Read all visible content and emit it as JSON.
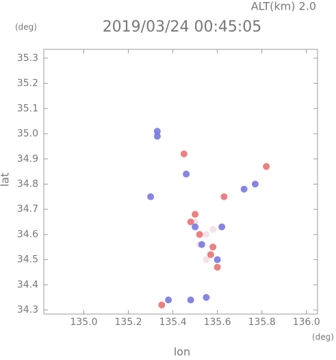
{
  "chart_data": {
    "type": "scatter",
    "subtitle": "ALT(km) 2.0",
    "title": "2019/03/24 00:45:05",
    "ylabel": "lat",
    "yunit": "(deg)",
    "xlabel": "lon",
    "xunit": "(deg)",
    "xlim": [
      134.82,
      136.05
    ],
    "ylim": [
      34.284,
      35.335
    ],
    "xticks": [
      {
        "value": 135.0,
        "label": "135.0"
      },
      135.2,
      135.4,
      135.6,
      135.8,
      {
        "value": 136.0,
        "label": "136.0"
      }
    ],
    "yticks": [
      34.3,
      34.4,
      34.5,
      34.6,
      34.7,
      34.8,
      34.9,
      {
        "value": 35.0,
        "label": "35.0"
      },
      35.1,
      35.2,
      35.3
    ],
    "series": [
      {
        "color": "#f3dde3",
        "x": [
          135.5,
          135.55,
          135.55,
          135.52,
          135.58
        ],
        "values": [
          34.65,
          34.6,
          34.5,
          34.56,
          34.62
        ]
      },
      {
        "color": "#7070e0",
        "x": [
          135.33,
          135.33,
          135.46,
          135.72,
          135.5,
          135.62,
          135.38,
          135.48,
          135.55,
          135.53,
          135.6,
          135.77,
          135.3
        ],
        "values": [
          35.01,
          34.99,
          34.84,
          34.78,
          34.63,
          34.63,
          34.34,
          34.34,
          34.35,
          34.56,
          34.5,
          34.8,
          34.75
        ]
      },
      {
        "color": "#e86a6a",
        "x": [
          135.5,
          135.52,
          135.58,
          135.6,
          135.63,
          135.82,
          135.35,
          135.48,
          135.57,
          135.45
        ],
        "values": [
          34.68,
          34.6,
          34.55,
          34.47,
          34.75,
          34.87,
          34.32,
          34.65,
          34.52,
          34.92
        ]
      }
    ]
  }
}
